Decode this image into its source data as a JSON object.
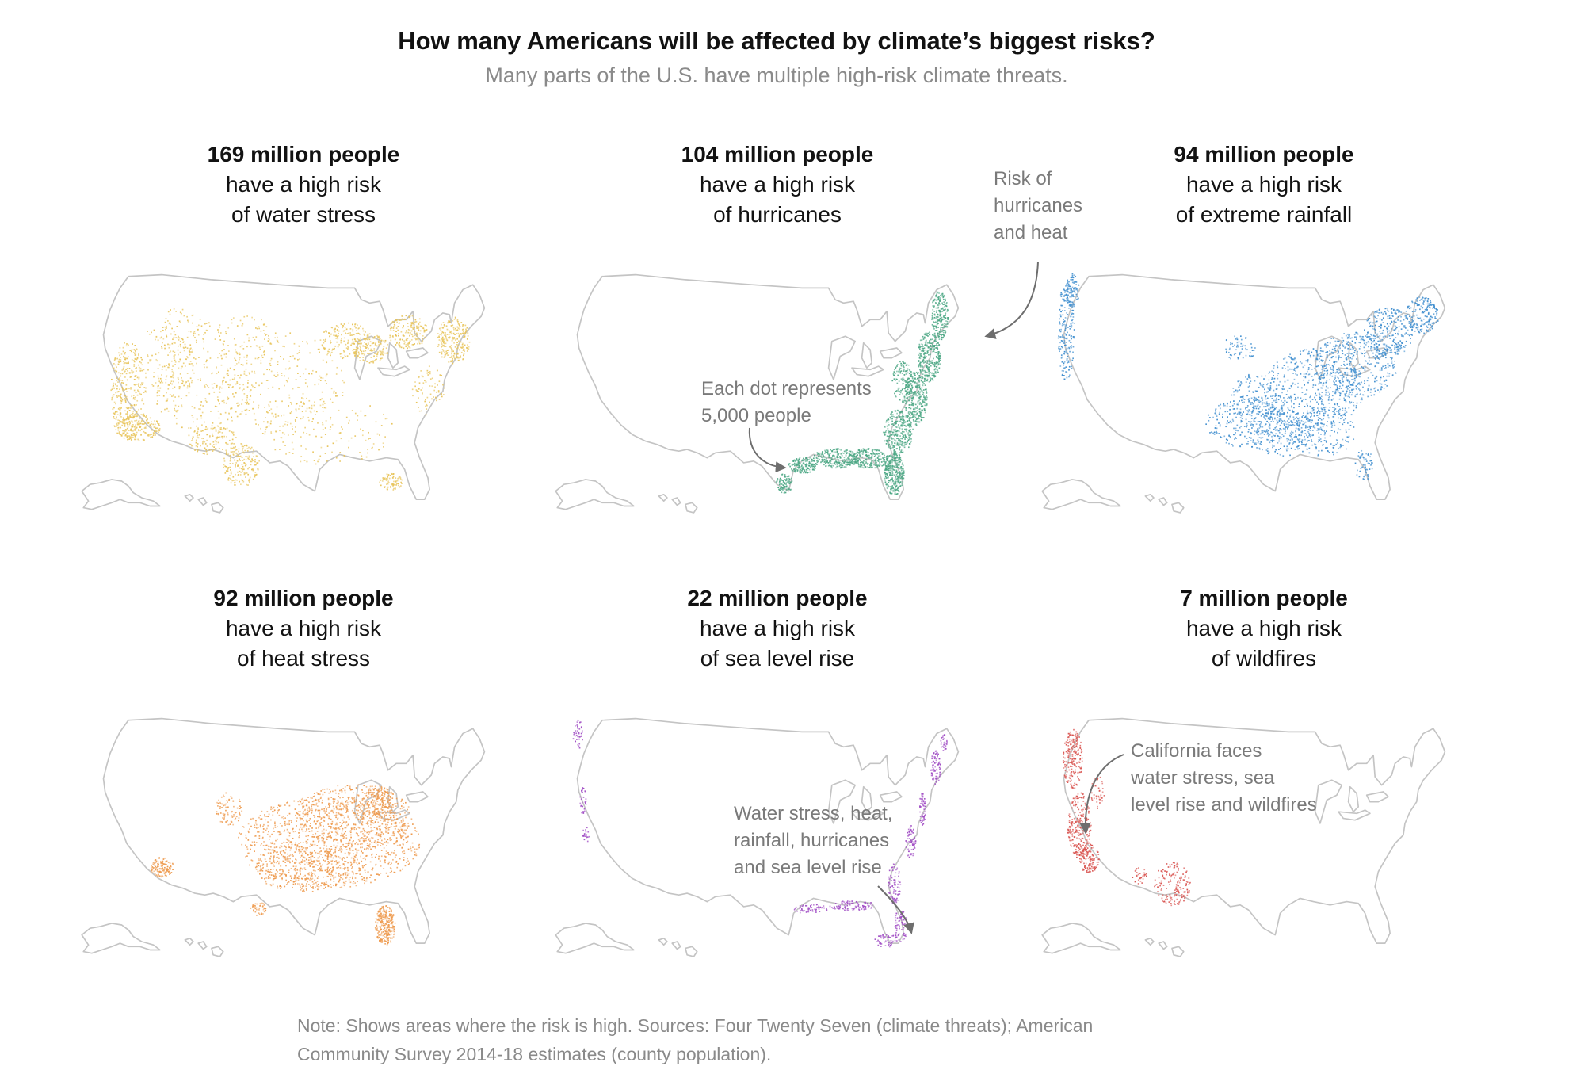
{
  "header": {
    "title": "How many Americans will be affected by climate’s biggest risks?",
    "subtitle": "Many parts of the U.S. have multiple high-risk climate threats."
  },
  "panels": [
    {
      "count": "169 million people",
      "line1": "have a high risk",
      "line2": "of water stress",
      "risk": "water-stress",
      "color": "#e8c45a"
    },
    {
      "count": "104 million people",
      "line1": "have a high risk",
      "line2": "of hurricanes",
      "risk": "hurricanes",
      "color": "#4aa683"
    },
    {
      "count": "94 million people",
      "line1": "have a high risk",
      "line2": "of extreme rainfall",
      "risk": "extreme-rainfall",
      "color": "#3f8ecf"
    },
    {
      "count": "92 million people",
      "line1": "have a high risk",
      "line2": "of heat stress",
      "risk": "heat-stress",
      "color": "#ee9a4d"
    },
    {
      "count": "22 million people",
      "line1": "have a high risk",
      "line2": "of sea level rise",
      "risk": "sea-level-rise",
      "color": "#a04cc4"
    },
    {
      "count": "7 million people",
      "line1": "have a high risk",
      "line2": "of wildfires",
      "risk": "wildfires",
      "color": "#d9534f"
    }
  ],
  "annotations": {
    "hurricanes_heat": [
      "Risk of",
      "hurricanes",
      "and heat"
    ],
    "dot_legend": [
      "Each dot represents",
      "5,000 people"
    ],
    "multi_risk": [
      "Water stress, heat,",
      "rainfall, hurricanes",
      "and sea level rise"
    ],
    "california": [
      "California faces",
      "water stress, sea",
      "level rise and wildfires"
    ]
  },
  "note": {
    "line1": "Note: Shows areas where the risk is high. Sources: Four Twenty Seven (climate threats); American",
    "line2": "Community Survey 2014-18 estimates (county population)."
  },
  "colors": {
    "outline": "#c4c4c4",
    "annotation_text": "#7a7a7a",
    "arrow": "#6e6e6e"
  }
}
